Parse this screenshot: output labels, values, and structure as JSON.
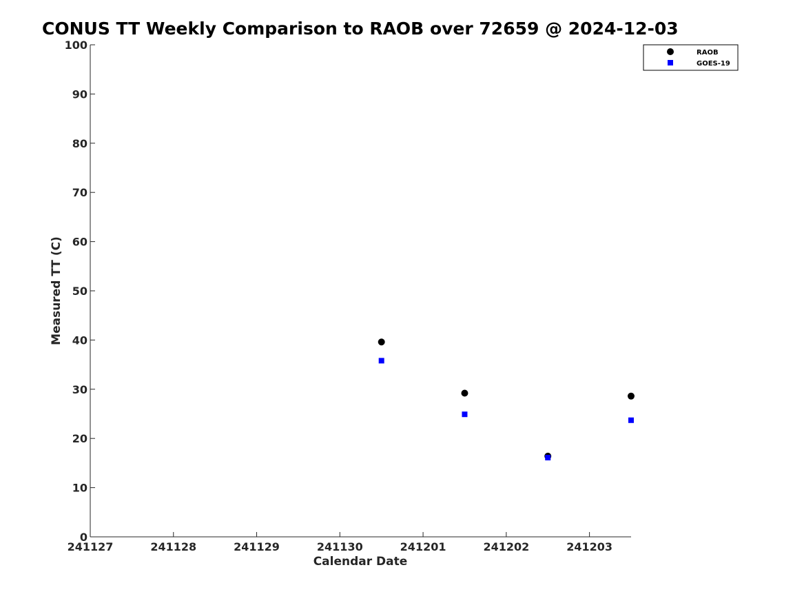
{
  "chart_data": {
    "type": "scatter",
    "title": "CONUS TT Weekly Comparison to RAOB over 72659 @ 2024-12-03",
    "xlabel": "Calendar Date",
    "ylabel": "Measured TT (C)",
    "xlim": [
      0,
      6.5
    ],
    "ylim": [
      0,
      100
    ],
    "x_ticks": [
      {
        "value": 0,
        "label": "241127"
      },
      {
        "value": 1,
        "label": "241128"
      },
      {
        "value": 2,
        "label": "241129"
      },
      {
        "value": 3,
        "label": "241130"
      },
      {
        "value": 4,
        "label": "241201"
      },
      {
        "value": 5,
        "label": "241202"
      },
      {
        "value": 6,
        "label": "241203"
      }
    ],
    "y_ticks": [
      {
        "value": 0,
        "label": "0"
      },
      {
        "value": 10,
        "label": "10"
      },
      {
        "value": 20,
        "label": "20"
      },
      {
        "value": 30,
        "label": "30"
      },
      {
        "value": 40,
        "label": "40"
      },
      {
        "value": 50,
        "label": "50"
      },
      {
        "value": 60,
        "label": "60"
      },
      {
        "value": 70,
        "label": "70"
      },
      {
        "value": 80,
        "label": "80"
      },
      {
        "value": 90,
        "label": "90"
      },
      {
        "value": 100,
        "label": "100"
      }
    ],
    "grid": false,
    "legend_position": "top-right",
    "series": [
      {
        "name": "RAOB",
        "marker": "circle",
        "color": "#000000",
        "x": [
          3.5,
          4.5,
          5.5,
          6.5
        ],
        "y": [
          39.6,
          29.2,
          16.4,
          28.6
        ]
      },
      {
        "name": "GOES-19",
        "marker": "square",
        "color": "#0000ff",
        "x": [
          3.5,
          4.5,
          5.5,
          6.5
        ],
        "y": [
          35.8,
          24.9,
          16.1,
          23.7
        ]
      }
    ]
  }
}
